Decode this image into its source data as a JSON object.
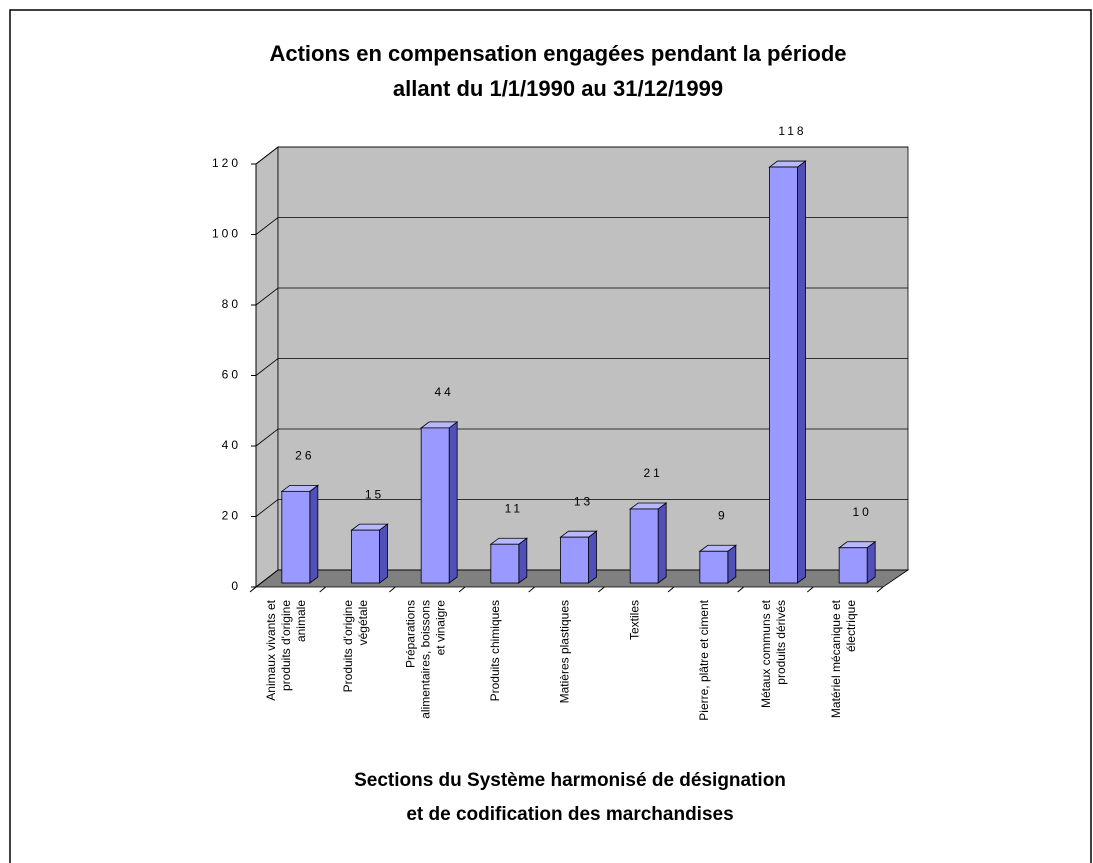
{
  "chart_data": {
    "type": "bar3d",
    "title": [
      "Actions en compensation engagées pendant la période",
      "allant du 1/1/1990 au 31/12/1999"
    ],
    "x_label": [
      "Sections du Système harmonisé de désignation",
      "et de codification des marchandises"
    ],
    "categories": [
      [
        "Animaux vivants et",
        "produits d'origine",
        "animale"
      ],
      [
        "Produits d'origine",
        "végétale"
      ],
      [
        "Préparations",
        "alimentaires, boissons",
        "et vinaigre"
      ],
      [
        "Produits chimiques"
      ],
      [
        "Matières plastiques"
      ],
      [
        "Textiles"
      ],
      [
        "Pierre, plâtre et ciment"
      ],
      [
        "Métaux communs et",
        "produits dérivés"
      ],
      [
        "Matériel mécanique et",
        "électrique"
      ]
    ],
    "values": [
      26,
      15,
      44,
      11,
      13,
      21,
      9,
      118,
      10
    ],
    "color": "#9999ff",
    "ylim": [
      0,
      120
    ],
    "yticks": [
      0,
      20,
      40,
      60,
      80,
      100,
      120
    ],
    "grid": true
  }
}
